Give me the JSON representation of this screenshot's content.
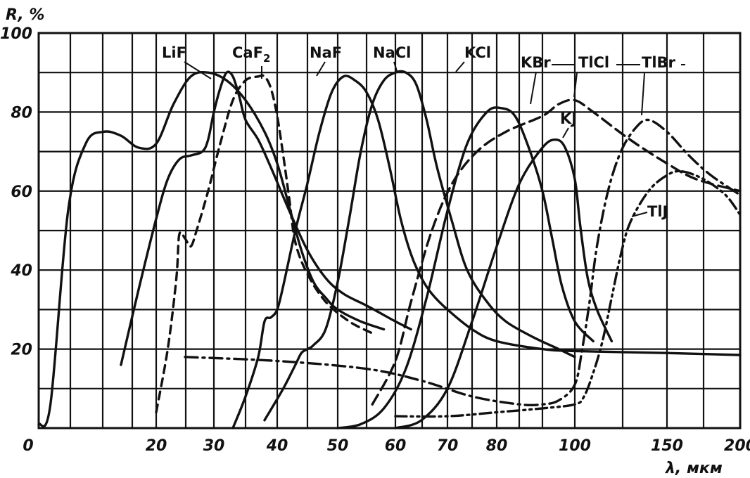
{
  "chart_data": {
    "type": "line",
    "title": "",
    "ylabel": "R, %",
    "xlabel": "λ, мкм",
    "ylim": [
      0,
      100
    ],
    "yticks": [
      0,
      20,
      40,
      60,
      80,
      100
    ],
    "ytick_labels": [
      "",
      "20",
      "40",
      "60",
      "80",
      "100"
    ],
    "xscale": "piecewise",
    "xticks": [
      0,
      20,
      30,
      40,
      50,
      60,
      70,
      80,
      90,
      100,
      150,
      200
    ],
    "xtick_labels": [
      "0",
      "20",
      "30",
      "40",
      "50",
      "60",
      "70",
      "80",
      "",
      "100",
      "150",
      "200"
    ],
    "x_origin_label": "0",
    "grid": true,
    "series": [
      {
        "name": "LiF",
        "style": "solid",
        "points": [
          [
            0,
            1
          ],
          [
            2,
            6
          ],
          [
            5,
            55
          ],
          [
            8,
            72
          ],
          [
            11,
            75
          ],
          [
            14,
            74
          ],
          [
            17,
            71
          ],
          [
            20,
            72
          ],
          [
            23,
            82
          ],
          [
            26,
            89
          ],
          [
            29,
            90
          ],
          [
            32,
            88
          ],
          [
            35,
            83
          ],
          [
            38,
            75
          ],
          [
            40,
            67
          ],
          [
            42,
            56
          ],
          [
            44,
            45
          ],
          [
            46,
            37
          ],
          [
            48,
            33
          ],
          [
            50,
            30
          ],
          [
            54,
            27
          ],
          [
            58,
            25
          ]
        ]
      },
      {
        "name": "CaF2",
        "style": "solid",
        "points": [
          [
            14,
            16
          ],
          [
            17,
            35
          ],
          [
            20,
            53
          ],
          [
            22,
            63
          ],
          [
            24,
            68
          ],
          [
            26,
            69
          ],
          [
            28,
            70
          ],
          [
            29,
            73
          ],
          [
            30,
            80
          ],
          [
            31,
            86
          ],
          [
            32,
            90
          ],
          [
            33,
            89
          ],
          [
            34,
            84
          ],
          [
            35,
            78
          ],
          [
            37,
            73
          ],
          [
            39,
            66
          ],
          [
            42,
            55
          ],
          [
            45,
            45
          ],
          [
            48,
            38
          ],
          [
            51,
            34
          ],
          [
            55,
            31
          ],
          [
            60,
            27
          ],
          [
            63,
            25
          ]
        ]
      },
      {
        "name": "NaF",
        "style": "dashed",
        "points": [
          [
            20,
            4
          ],
          [
            22,
            20
          ],
          [
            23.5,
            38
          ],
          [
            24,
            49
          ],
          [
            25,
            48
          ],
          [
            26,
            46
          ],
          [
            27,
            50
          ],
          [
            29,
            60
          ],
          [
            31,
            72
          ],
          [
            33,
            83
          ],
          [
            35,
            88
          ],
          [
            37,
            89
          ],
          [
            38,
            89
          ],
          [
            39,
            86
          ],
          [
            40,
            79
          ],
          [
            41,
            69
          ],
          [
            42,
            58
          ],
          [
            43,
            47
          ],
          [
            45,
            39
          ],
          [
            48,
            32
          ],
          [
            52,
            27
          ],
          [
            56,
            24
          ]
        ]
      },
      {
        "name": "NaCl",
        "style": "solid",
        "points": [
          [
            33,
            0
          ],
          [
            35,
            8
          ],
          [
            37,
            18
          ],
          [
            38,
            27
          ],
          [
            39,
            28
          ],
          [
            40,
            30
          ],
          [
            41,
            36
          ],
          [
            43,
            50
          ],
          [
            45,
            62
          ],
          [
            47,
            75
          ],
          [
            49,
            85
          ],
          [
            51,
            89
          ],
          [
            53,
            88
          ],
          [
            55,
            85
          ],
          [
            57,
            78
          ],
          [
            59,
            66
          ],
          [
            61,
            53
          ],
          [
            63,
            44
          ],
          [
            65,
            38
          ],
          [
            67,
            34
          ],
          [
            70,
            30
          ],
          [
            75,
            25
          ],
          [
            80,
            22
          ],
          [
            90,
            20
          ],
          [
            100,
            19.5
          ],
          [
            150,
            19
          ],
          [
            200,
            18.5
          ]
        ]
      },
      {
        "name": "KCl",
        "style": "solid",
        "points": [
          [
            38,
            2
          ],
          [
            41,
            10
          ],
          [
            43,
            16
          ],
          [
            44,
            19
          ],
          [
            45,
            20
          ],
          [
            46,
            21
          ],
          [
            48,
            25
          ],
          [
            50,
            37
          ],
          [
            52,
            53
          ],
          [
            54,
            70
          ],
          [
            56,
            82
          ],
          [
            58,
            88
          ],
          [
            60,
            90
          ],
          [
            62,
            90
          ],
          [
            64,
            87
          ],
          [
            66,
            78
          ],
          [
            68,
            66
          ],
          [
            71,
            52
          ],
          [
            74,
            40
          ],
          [
            78,
            32
          ],
          [
            82,
            27
          ],
          [
            88,
            23
          ],
          [
            95,
            20
          ],
          [
            100,
            18
          ]
        ]
      },
      {
        "name": "KBr",
        "style": "solid",
        "points": [
          [
            50,
            0
          ],
          [
            54,
            1
          ],
          [
            58,
            5
          ],
          [
            62,
            15
          ],
          [
            66,
            33
          ],
          [
            70,
            55
          ],
          [
            74,
            72
          ],
          [
            78,
            80
          ],
          [
            81,
            81
          ],
          [
            84,
            79
          ],
          [
            87,
            71
          ],
          [
            90,
            60
          ],
          [
            93,
            48
          ],
          [
            96,
            36
          ],
          [
            100,
            27
          ],
          [
            110,
            22
          ]
        ]
      },
      {
        "name": "TlCl",
        "style": "dash",
        "points": [
          [
            56,
            6
          ],
          [
            60,
            17
          ],
          [
            63,
            32
          ],
          [
            67,
            50
          ],
          [
            71,
            62
          ],
          [
            76,
            70
          ],
          [
            82,
            75
          ],
          [
            90,
            79
          ],
          [
            95,
            82
          ],
          [
            100,
            83
          ],
          [
            110,
            80
          ],
          [
            130,
            73
          ],
          [
            150,
            67
          ],
          [
            170,
            63
          ],
          [
            200,
            60
          ]
        ]
      },
      {
        "name": "KJ",
        "style": "solid",
        "points": [
          [
            60,
            0
          ],
          [
            65,
            2
          ],
          [
            70,
            10
          ],
          [
            75,
            27
          ],
          [
            80,
            46
          ],
          [
            85,
            62
          ],
          [
            90,
            71
          ],
          [
            94,
            73
          ],
          [
            97,
            71
          ],
          [
            100,
            63
          ],
          [
            103,
            51
          ],
          [
            107,
            38
          ],
          [
            112,
            30
          ],
          [
            120,
            22
          ]
        ]
      },
      {
        "name": "TlBr",
        "style": "dashdot",
        "points": [
          [
            25,
            18
          ],
          [
            40,
            17
          ],
          [
            55,
            15
          ],
          [
            65,
            12
          ],
          [
            75,
            8
          ],
          [
            85,
            6
          ],
          [
            90,
            6
          ],
          [
            95,
            7
          ],
          [
            100,
            11
          ],
          [
            104,
            20
          ],
          [
            108,
            32
          ],
          [
            112,
            46
          ],
          [
            118,
            60
          ],
          [
            125,
            70
          ],
          [
            133,
            76
          ],
          [
            140,
            78
          ],
          [
            150,
            75
          ],
          [
            165,
            69
          ],
          [
            180,
            64
          ],
          [
            200,
            59
          ]
        ]
      },
      {
        "name": "TlJ",
        "style": "dashdotdot",
        "points": [
          [
            60,
            3
          ],
          [
            70,
            3
          ],
          [
            80,
            4
          ],
          [
            90,
            5
          ],
          [
            100,
            6
          ],
          [
            105,
            8
          ],
          [
            110,
            14
          ],
          [
            115,
            22
          ],
          [
            120,
            33
          ],
          [
            125,
            44
          ],
          [
            130,
            52
          ],
          [
            140,
            60
          ],
          [
            150,
            64
          ],
          [
            160,
            65
          ],
          [
            175,
            63
          ],
          [
            190,
            59
          ],
          [
            200,
            54
          ]
        ]
      }
    ],
    "annotations": []
  }
}
